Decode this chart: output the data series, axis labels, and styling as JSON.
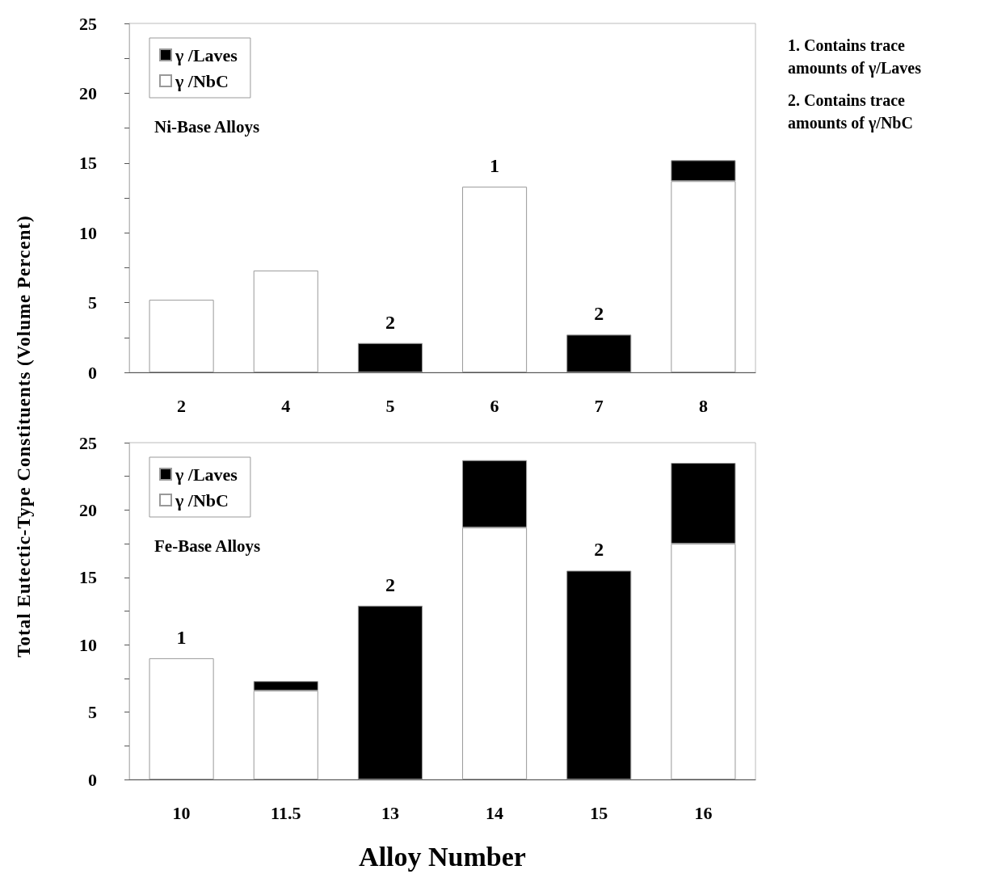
{
  "chart_data": [
    {
      "type": "bar",
      "title": "Ni-Base Alloys",
      "stacked": true,
      "legend": "top left",
      "categories": [
        "2",
        "4",
        "5",
        "6",
        "7",
        "8"
      ],
      "series": [
        {
          "name": "γ /NbC",
          "color": "#ffffff",
          "values": [
            5.2,
            7.3,
            null,
            13.3,
            null,
            13.7
          ]
        },
        {
          "name": "γ /Laves",
          "color": "#000000",
          "values": [
            null,
            null,
            2.1,
            null,
            2.7,
            1.5
          ]
        }
      ],
      "ylim": [
        0,
        25
      ],
      "yticks": [
        0,
        {
          "value": 2.5,
          "label": null
        },
        5,
        {
          "value": 7.5,
          "label": null
        },
        10,
        {
          "value": 12.5,
          "label": null
        },
        15,
        {
          "value": 17.5,
          "label": null
        },
        20,
        {
          "value": 22.5,
          "label": null
        },
        25
      ],
      "grid": false,
      "annotations": [
        {
          "text": "2",
          "x": "5",
          "y": 2.1
        },
        {
          "text": "1",
          "x": "6",
          "y": 13.3
        },
        {
          "text": "2",
          "x": "7",
          "y": 2.7
        },
        "1. Contains trace amounts of γ/Laves",
        "2. Contains trace amounts of γ/NbC"
      ]
    },
    {
      "type": "bar",
      "title": "Fe-Base Alloys",
      "stacked": true,
      "legend": "top left",
      "xlabel": "Alloy Number",
      "ylabel": "Total Eutectic-Type Constituents (Volume Percent)",
      "categories": [
        "10",
        "11.5",
        "13",
        "14",
        "15",
        "16"
      ],
      "series": [
        {
          "name": "γ /NbC",
          "color": "#ffffff",
          "values": [
            9.0,
            6.6,
            null,
            18.7,
            null,
            17.5
          ]
        },
        {
          "name": "γ /Laves",
          "color": "#000000",
          "values": [
            null,
            0.7,
            12.9,
            5.0,
            15.5,
            6.0
          ]
        }
      ],
      "ylim": [
        0,
        25
      ],
      "yticks": [
        0,
        {
          "value": 2.5,
          "label": null
        },
        5,
        {
          "value": 7.5,
          "label": null
        },
        10,
        {
          "value": 12.5,
          "label": null
        },
        15,
        {
          "value": 17.5,
          "label": null
        },
        20,
        {
          "value": 22.5,
          "label": null
        },
        25
      ],
      "grid": false,
      "annotations": [
        {
          "text": "1",
          "x": "10",
          "y": 9.0
        },
        {
          "text": "2",
          "x": "13",
          "y": 12.9
        },
        {
          "text": "2",
          "x": "15",
          "y": 15.5
        }
      ]
    }
  ]
}
